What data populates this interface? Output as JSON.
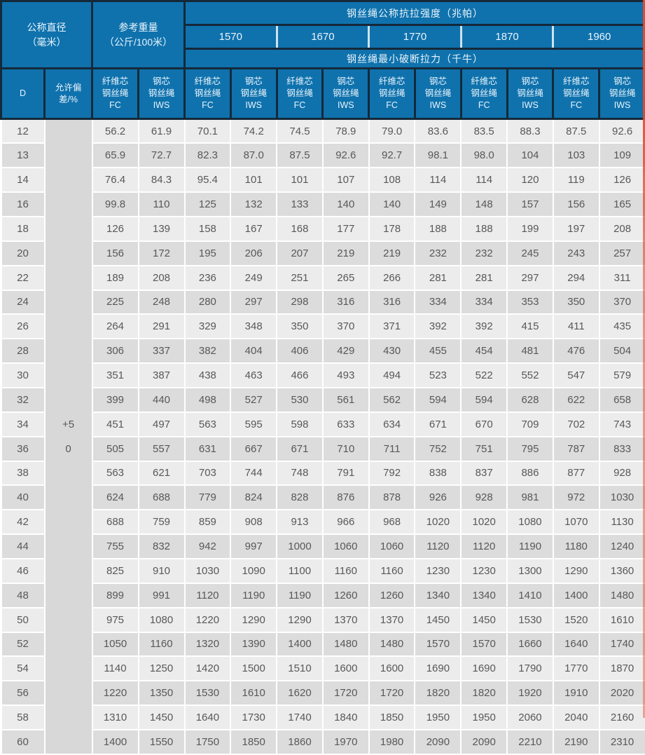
{
  "header": {
    "diameter": "公称直径\n（毫米）",
    "weight": "参考重量\n（公斤/100米）",
    "strength_title": "钢丝绳公称抗拉强度（兆帕）",
    "strengths": [
      "1570",
      "1670",
      "1770",
      "1870",
      "1960"
    ],
    "breaking_title": "钢丝绳最小破断拉力（千牛）",
    "sub_d": "D",
    "sub_deviation": "允许偏\n差/%",
    "sub_fc": "纤维芯\n钢丝绳\nFC",
    "sub_iws": "钢芯\n钢丝绳\nIWS"
  },
  "table": {
    "deviation_value": "+5\n0",
    "rows": [
      [
        "12",
        "56.2",
        "61.9",
        "70.1",
        "74.2",
        "74.5",
        "78.9",
        "79.0",
        "83.6",
        "83.5",
        "88.3",
        "87.5",
        "92.6"
      ],
      [
        "13",
        "65.9",
        "72.7",
        "82.3",
        "87.0",
        "87.5",
        "92.6",
        "92.7",
        "98.1",
        "98.0",
        "104",
        "103",
        "109"
      ],
      [
        "14",
        "76.4",
        "84.3",
        "95.4",
        "101",
        "101",
        "107",
        "108",
        "114",
        "114",
        "120",
        "119",
        "126"
      ],
      [
        "16",
        "99.8",
        "110",
        "125",
        "132",
        "133",
        "140",
        "140",
        "149",
        "148",
        "157",
        "156",
        "165"
      ],
      [
        "18",
        "126",
        "139",
        "158",
        "167",
        "168",
        "177",
        "178",
        "188",
        "188",
        "199",
        "197",
        "208"
      ],
      [
        "20",
        "156",
        "172",
        "195",
        "206",
        "207",
        "219",
        "219",
        "232",
        "232",
        "245",
        "243",
        "257"
      ],
      [
        "22",
        "189",
        "208",
        "236",
        "249",
        "251",
        "265",
        "266",
        "281",
        "281",
        "297",
        "294",
        "311"
      ],
      [
        "24",
        "225",
        "248",
        "280",
        "297",
        "298",
        "316",
        "316",
        "334",
        "334",
        "353",
        "350",
        "370"
      ],
      [
        "26",
        "264",
        "291",
        "329",
        "348",
        "350",
        "370",
        "371",
        "392",
        "392",
        "415",
        "411",
        "435"
      ],
      [
        "28",
        "306",
        "337",
        "382",
        "404",
        "406",
        "429",
        "430",
        "455",
        "454",
        "481",
        "476",
        "504"
      ],
      [
        "30",
        "351",
        "387",
        "438",
        "463",
        "466",
        "493",
        "494",
        "523",
        "522",
        "552",
        "547",
        "579"
      ],
      [
        "32",
        "399",
        "440",
        "498",
        "527",
        "530",
        "561",
        "562",
        "594",
        "594",
        "628",
        "622",
        "658"
      ],
      [
        "34",
        "451",
        "497",
        "563",
        "595",
        "598",
        "633",
        "634",
        "671",
        "670",
        "709",
        "702",
        "743"
      ],
      [
        "36",
        "505",
        "557",
        "631",
        "667",
        "671",
        "710",
        "711",
        "752",
        "751",
        "795",
        "787",
        "833"
      ],
      [
        "38",
        "563",
        "621",
        "703",
        "744",
        "748",
        "791",
        "792",
        "838",
        "837",
        "886",
        "877",
        "928"
      ],
      [
        "40",
        "624",
        "688",
        "779",
        "824",
        "828",
        "876",
        "878",
        "926",
        "928",
        "981",
        "972",
        "1030"
      ],
      [
        "42",
        "688",
        "759",
        "859",
        "908",
        "913",
        "966",
        "968",
        "1020",
        "1020",
        "1080",
        "1070",
        "1130"
      ],
      [
        "44",
        "755",
        "832",
        "942",
        "997",
        "1000",
        "1060",
        "1060",
        "1120",
        "1120",
        "1190",
        "1180",
        "1240"
      ],
      [
        "46",
        "825",
        "910",
        "1030",
        "1090",
        "1100",
        "1160",
        "1160",
        "1230",
        "1230",
        "1300",
        "1290",
        "1360"
      ],
      [
        "48",
        "899",
        "991",
        "1120",
        "1190",
        "1190",
        "1260",
        "1260",
        "1340",
        "1340",
        "1410",
        "1400",
        "1480"
      ],
      [
        "50",
        "975",
        "1080",
        "1220",
        "1290",
        "1290",
        "1370",
        "1370",
        "1450",
        "1450",
        "1530",
        "1520",
        "1610"
      ],
      [
        "52",
        "1050",
        "1160",
        "1320",
        "1390",
        "1400",
        "1480",
        "1480",
        "1570",
        "1570",
        "1660",
        "1640",
        "1740"
      ],
      [
        "54",
        "1140",
        "1250",
        "1420",
        "1500",
        "1510",
        "1600",
        "1600",
        "1690",
        "1690",
        "1790",
        "1770",
        "1870"
      ],
      [
        "56",
        "1220",
        "1350",
        "1530",
        "1610",
        "1620",
        "1720",
        "1720",
        "1820",
        "1820",
        "1920",
        "1910",
        "2020"
      ],
      [
        "58",
        "1310",
        "1450",
        "1640",
        "1730",
        "1740",
        "1840",
        "1850",
        "1950",
        "1950",
        "2060",
        "2040",
        "2160"
      ],
      [
        "60",
        "1400",
        "1550",
        "1750",
        "1850",
        "1860",
        "1970",
        "1980",
        "2090",
        "2090",
        "2210",
        "2190",
        "2310"
      ]
    ]
  }
}
